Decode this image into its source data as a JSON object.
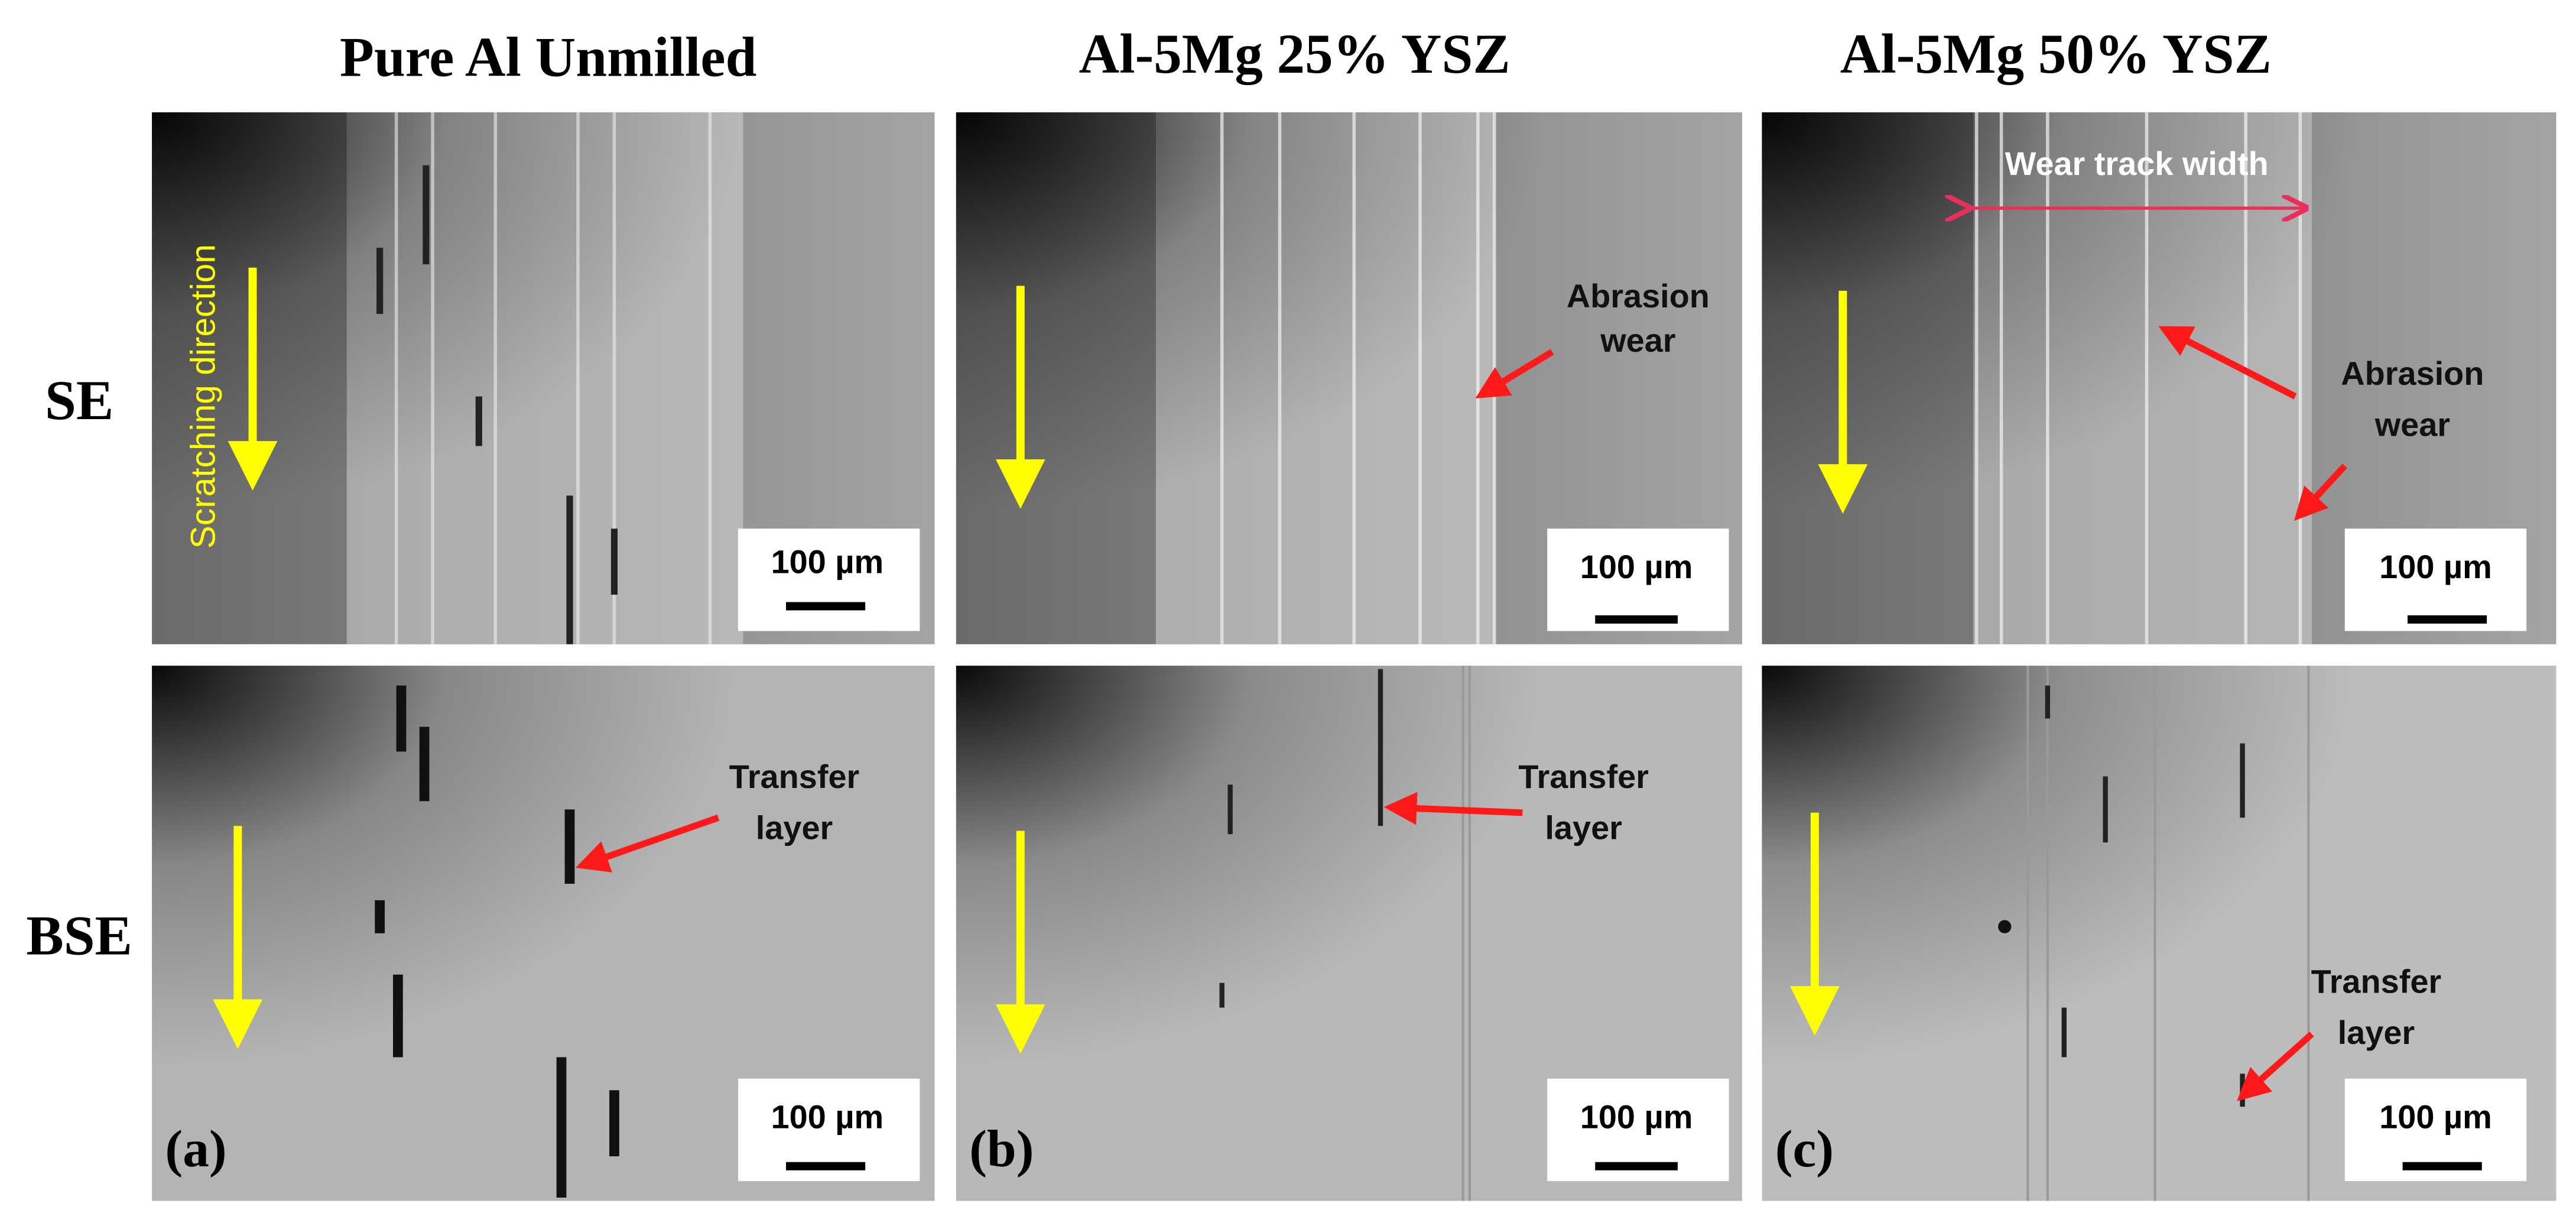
{
  "column_titles": [
    "Pure Al Unmilled",
    "Al-5Mg 25% YSZ",
    "Al-5Mg 50% YSZ"
  ],
  "row_labels": [
    "SE",
    "BSE"
  ],
  "panel_labels": [
    "(a)",
    "(b)",
    "(c)"
  ],
  "images": [
    {
      "scale_bar": "100 µm",
      "annotations": [
        {
          "lines": [
            "Scratching direction"
          ]
        }
      ]
    },
    {
      "scale_bar": "100 µm",
      "annotations": [
        {
          "lines": [
            "Abrasion",
            "wear"
          ]
        }
      ]
    },
    {
      "scale_bar": "100 µm",
      "annotations": [
        {
          "lines": [
            "Wear track width"
          ]
        },
        {
          "lines": [
            "Abrasion",
            "wear"
          ]
        }
      ]
    },
    {
      "scale_bar": "100 µm",
      "annotations": [
        {
          "lines": [
            "Transfer",
            "layer"
          ]
        }
      ]
    },
    {
      "scale_bar": "100 µm",
      "annotations": [
        {
          "lines": [
            "Transfer",
            "layer"
          ]
        }
      ]
    },
    {
      "scale_bar": "100 µm",
      "annotations": [
        {
          "lines": [
            "Transfer",
            "layer"
          ]
        }
      ]
    }
  ]
}
